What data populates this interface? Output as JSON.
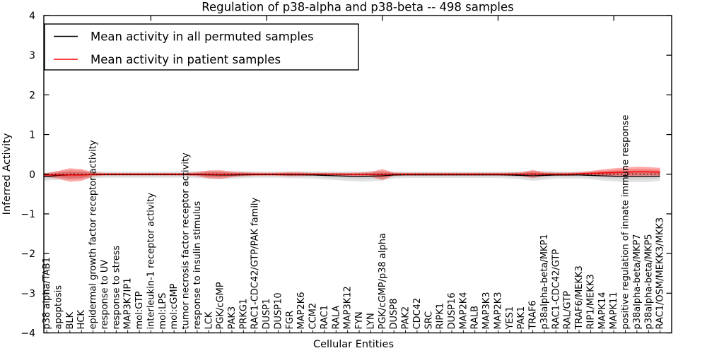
{
  "legend": {
    "entries": [
      {
        "label": "Mean activity in all permuted samples",
        "color": "#000000"
      },
      {
        "label": "Mean activity in patient samples",
        "color": "#ff0000"
      }
    ]
  },
  "chart_data": {
    "type": "line",
    "title": "Regulation of p38-alpha and p38-beta -- 498 samples",
    "xlabel": "Cellular Entities",
    "ylabel": "Inferred Activity",
    "ylim": [
      -4,
      4
    ],
    "yticks": [
      4,
      3,
      2,
      1,
      0,
      -1,
      -2,
      -3,
      -4
    ],
    "xlim": [
      0.75,
      55.0
    ],
    "x_top_ticks": [
      10,
      20,
      30,
      40,
      50
    ],
    "grid": false,
    "legend_position": "upper left",
    "zero_line": {
      "y": 0,
      "style": "dotted",
      "color": "#000000"
    },
    "categories": [
      "p38 alpha/TAB1",
      "apoptosis",
      "BLK",
      "HCK",
      "epidermal growth factor receptor activity",
      "response to UV",
      "response to stress",
      "MAP3K7IP1",
      "mol:GTP",
      "interleukin-1 receptor activity",
      "mol:LPS",
      "mol:cGMP",
      "tumor necrosis factor receptor activity",
      "response to insulin stimulus",
      "LCK",
      "PGK/cGMP",
      "PAK3",
      "PRKG1",
      "RAC1-CDC42/GTP/PAK family",
      "DUSP1",
      "DUSP10",
      "FGR",
      "MAP2K6",
      "CCM2",
      "RAC1",
      "RALA",
      "MAP3K12",
      "FYN",
      "LYN",
      "PGK/cGMP/p38 alpha",
      "DUSP8",
      "PAK2",
      "CDC42",
      "SRC",
      "RIPK1",
      "DUSP16",
      "MAP2K4",
      "RALB",
      "MAP3K3",
      "MAP2K3",
      "YES1",
      "PAK1",
      "TRAF6",
      "p38alpha-beta/MKP1",
      "RAC1-CDC42/GTP",
      "RAL/GTP",
      "TRAF6/MEKK3",
      "RIP1/MEKK3",
      "MAPK14",
      "MAPK11",
      "positive regulation of innate immune response",
      "p38alpha-beta/MKP7",
      "p38alpha-beta/MKP5",
      "RAC1/OSM/MEKK3/MKK3"
    ],
    "series": [
      {
        "name": "Mean activity in all permuted samples",
        "color": "#000000",
        "line_width": 1.3,
        "band_color": "rgba(0,0,0,0.11)",
        "band_core_color": "rgba(0,0,0,0.06)",
        "values": [
          -0.06,
          -0.03,
          -0.02,
          -0.015,
          -0.01,
          -0.01,
          -0.01,
          -0.01,
          -0.01,
          -0.01,
          -0.01,
          -0.01,
          -0.01,
          -0.01,
          -0.015,
          -0.02,
          -0.02,
          -0.015,
          -0.01,
          -0.01,
          -0.01,
          -0.015,
          -0.015,
          -0.02,
          -0.03,
          -0.04,
          -0.05,
          -0.06,
          -0.05,
          -0.04,
          -0.02,
          -0.015,
          -0.015,
          -0.015,
          -0.015,
          -0.015,
          -0.015,
          -0.015,
          -0.015,
          -0.015,
          -0.02,
          -0.03,
          -0.04,
          -0.03,
          -0.02,
          -0.02,
          -0.02,
          -0.03,
          -0.04,
          -0.05,
          -0.06,
          -0.06,
          -0.06,
          -0.05
        ],
        "band": [
          0.1,
          0.11,
          0.12,
          0.11,
          0.09,
          0.08,
          0.08,
          0.08,
          0.08,
          0.08,
          0.08,
          0.08,
          0.08,
          0.09,
          0.1,
          0.1,
          0.1,
          0.09,
          0.08,
          0.08,
          0.08,
          0.09,
          0.09,
          0.09,
          0.1,
          0.11,
          0.12,
          0.13,
          0.13,
          0.12,
          0.09,
          0.08,
          0.08,
          0.08,
          0.08,
          0.08,
          0.08,
          0.08,
          0.08,
          0.08,
          0.09,
          0.1,
          0.13,
          0.11,
          0.09,
          0.09,
          0.09,
          0.1,
          0.12,
          0.13,
          0.14,
          0.14,
          0.14,
          0.12
        ]
      },
      {
        "name": "Mean activity in patient samples",
        "color": "#ff0000",
        "line_width": 1.5,
        "band_color": "rgba(255,0,0,0.34)",
        "band_core_color": "rgba(200,0,0,0.22)",
        "values": [
          -0.02,
          -0.015,
          -0.02,
          -0.02,
          -0.005,
          0,
          0,
          0,
          0,
          0,
          0,
          0,
          0,
          0,
          -0.005,
          -0.01,
          -0.005,
          0,
          0,
          0,
          0,
          0,
          0,
          0,
          0,
          0,
          -0.005,
          -0.005,
          -0.005,
          -0.01,
          0,
          0,
          0,
          0,
          0,
          0,
          0,
          0,
          0,
          0,
          0,
          0,
          0.005,
          0,
          0,
          0,
          0.01,
          0.02,
          0.03,
          0.04,
          0.05,
          0.06,
          0.06,
          0.05
        ],
        "band": [
          0.05,
          0.1,
          0.17,
          0.15,
          0.05,
          0.03,
          0.03,
          0.03,
          0.03,
          0.03,
          0.03,
          0.03,
          0.03,
          0.05,
          0.1,
          0.11,
          0.07,
          0.05,
          0.04,
          0.035,
          0.04,
          0.05,
          0.045,
          0.035,
          0.035,
          0.035,
          0.04,
          0.045,
          0.06,
          0.14,
          0.04,
          0.035,
          0.035,
          0.035,
          0.035,
          0.035,
          0.035,
          0.035,
          0.035,
          0.035,
          0.04,
          0.05,
          0.1,
          0.05,
          0.04,
          0.04,
          0.04,
          0.06,
          0.09,
          0.11,
          0.12,
          0.13,
          0.12,
          0.11
        ]
      }
    ]
  }
}
